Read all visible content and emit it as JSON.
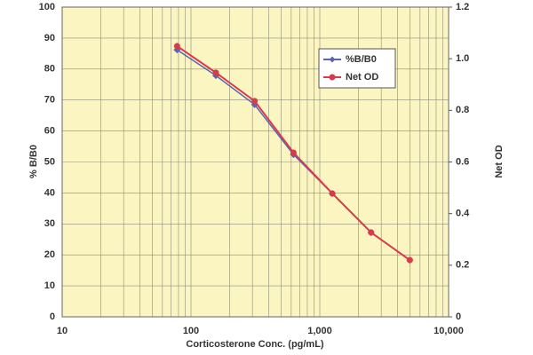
{
  "chart_data": {
    "type": "line",
    "x_label": "Corticosterone Conc. (pg/mL)",
    "y_label": "% B/B0",
    "y2_label": "Net OD",
    "x": [
      78,
      156,
      312,
      625,
      1250,
      2500,
      5000
    ],
    "series": [
      {
        "name": "%B/B0",
        "color": "#5a66b0",
        "marker": "diamond",
        "values": [
          86.2,
          77.9,
          68.5,
          52.4,
          39.8,
          27.2,
          18.3
        ]
      },
      {
        "name": "Net OD",
        "color": "#d93a4c",
        "marker": "circle",
        "axis": "y2",
        "values": [
          1.049,
          0.946,
          0.836,
          0.636,
          0.478,
          0.327,
          0.22
        ]
      }
    ],
    "xscale": "log",
    "xlim": [
      10,
      10000
    ],
    "xticks": [
      10,
      100,
      {
        "value": 1000,
        "label": "1,000"
      },
      {
        "value": 10000,
        "label": "10,000"
      }
    ],
    "ylim": [
      0,
      100
    ],
    "yticks": [
      0,
      10,
      20,
      30,
      40,
      50,
      60,
      70,
      80,
      90,
      100
    ],
    "y2lim": [
      0,
      1.2
    ],
    "y2ticks": [
      0,
      0.2,
      0.4,
      0.6,
      0.8,
      {
        "value": 1,
        "label": "1.0"
      },
      1.2
    ],
    "grid": true,
    "minor_grid": true,
    "background": "#fbf5c2",
    "legend": "upper right"
  }
}
